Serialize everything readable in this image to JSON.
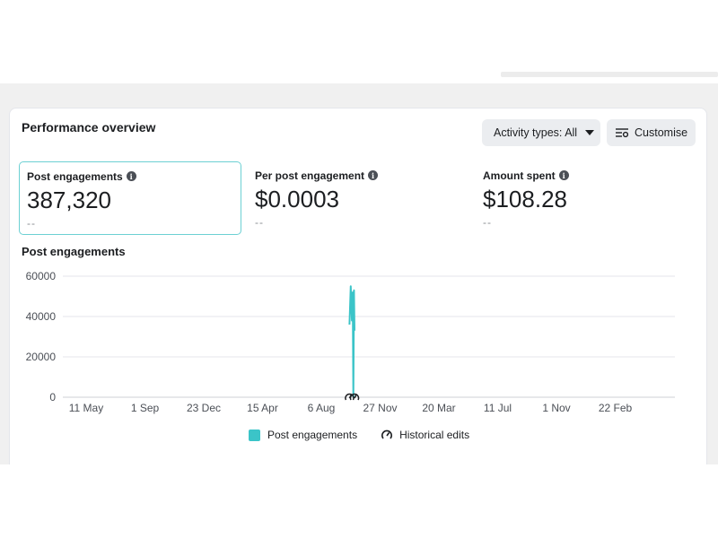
{
  "header": {
    "title": "Performance overview",
    "activity_button": "Activity types: All",
    "customise_button": "Customise"
  },
  "metrics": [
    {
      "label": "Post engagements",
      "value": "387,320",
      "sub": "--"
    },
    {
      "label": "Per post engagement",
      "value": "$0.0003",
      "sub": "--"
    },
    {
      "label": "Amount spent",
      "value": "$108.28",
      "sub": "--"
    }
  ],
  "chart_title": "Post engagements",
  "chart_data": {
    "type": "line",
    "title": "Post engagements",
    "xlabel": "",
    "ylabel": "",
    "ylim": [
      0,
      60000
    ],
    "yticks": [
      0,
      20000,
      40000,
      60000
    ],
    "xticks": [
      "11 May",
      "1 Sep",
      "23 Dec",
      "15 Apr",
      "6 Aug",
      "27 Nov",
      "20 Mar",
      "11 Jul",
      "1 Nov",
      "22 Feb"
    ],
    "series": [
      {
        "name": "Post engagements",
        "color": "#3bc4c8",
        "points": [
          {
            "x": 4.48,
            "y": 36000
          },
          {
            "x": 4.5,
            "y": 55000
          },
          {
            "x": 4.52,
            "y": 38000
          },
          {
            "x": 4.535,
            "y": 52000
          },
          {
            "x": 4.545,
            "y": 0
          },
          {
            "x": 4.555,
            "y": 53000
          },
          {
            "x": 4.565,
            "y": 33000
          }
        ]
      }
    ],
    "legend": [
      "Post engagements",
      "Historical edits"
    ],
    "grid": true
  },
  "legend": {
    "series": "Post engagements",
    "edits": "Historical edits"
  },
  "colors": {
    "accent": "#3bc4c8",
    "selected_border": "#6cd0d3"
  }
}
